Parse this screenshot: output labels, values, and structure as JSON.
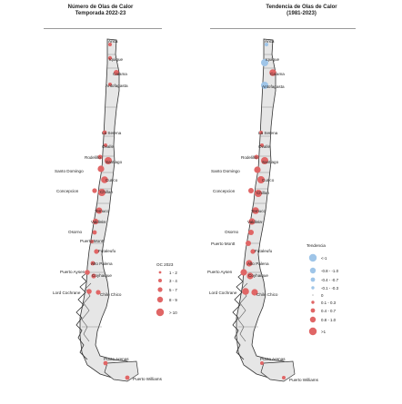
{
  "left": {
    "title": "Número de Olas de Calor",
    "subtitle": "Temporada 2022-23",
    "legend": {
      "title": "OC 2023",
      "items": [
        {
          "label": "1 - 2",
          "color": "#e06666"
        },
        {
          "label": "3 - 4",
          "color": "#e06666"
        },
        {
          "label": "5 - 7",
          "color": "#e06666"
        },
        {
          "label": "8 - 9",
          "color": "#e06666"
        },
        {
          "label": "> 10",
          "color": "#e06666"
        }
      ]
    },
    "cities": [
      "Arica",
      "Iquique",
      "Calama",
      "Antofagasta",
      "La Serena",
      "Ovalle",
      "Rodelillo",
      "Santiago",
      "Santo Domingo",
      "Curico",
      "Concepcion",
      "Chillan",
      "Temuco",
      "Valdivia",
      "Osorno",
      "Puerto Montt",
      "Futaleufu",
      "Alto Palena",
      "Puerto Aysen",
      "Coyhaique",
      "Lord Cochrane",
      "Chile Chico",
      "Punta Arenas",
      "Puerto Williams"
    ]
  },
  "right": {
    "title": "Tendencia de Olas de Calor",
    "subtitle": "(1981-2023)",
    "legend": {
      "title": "Tendencia",
      "items": [
        {
          "label": "<-1",
          "color": "#9fc5e8"
        },
        {
          "label": "-0.8 - -1.0",
          "color": "#9fc5e8"
        },
        {
          "label": "-0.4 - -0.7",
          "color": "#9fc5e8"
        },
        {
          "label": "-0.1 - -0.3",
          "color": "#9fc5e8"
        },
        {
          "label": "0",
          "color": "#bbbbbb"
        },
        {
          "label": "0.1 - 0.3",
          "color": "#e06666"
        },
        {
          "label": "0.4 - 0.7",
          "color": "#e06666"
        },
        {
          "label": "0.8 - 1.0",
          "color": "#e06666"
        },
        {
          "label": ">1",
          "color": "#e06666"
        }
      ]
    },
    "cities": [
      "Arica",
      "Iquique",
      "Calama",
      "Antofagasta",
      "La Serena",
      "Ovalle",
      "Rodelillo",
      "Santiago",
      "Santo Domingo",
      "Curico",
      "Concepcion",
      "Chillan",
      "Temuco",
      "Valdivia",
      "Osorno",
      "Puerto Montt",
      "Futaleufu",
      "Alto Palena",
      "Puerto Aysen",
      "Coyhaique",
      "Lord Cochrane",
      "Chile Chico",
      "Punta Arenas",
      "Puerto Williams"
    ]
  },
  "colors": {
    "land": "#e6e6e6",
    "outline": "#333333",
    "warm": "#e06666",
    "cool": "#9fc5e8"
  }
}
